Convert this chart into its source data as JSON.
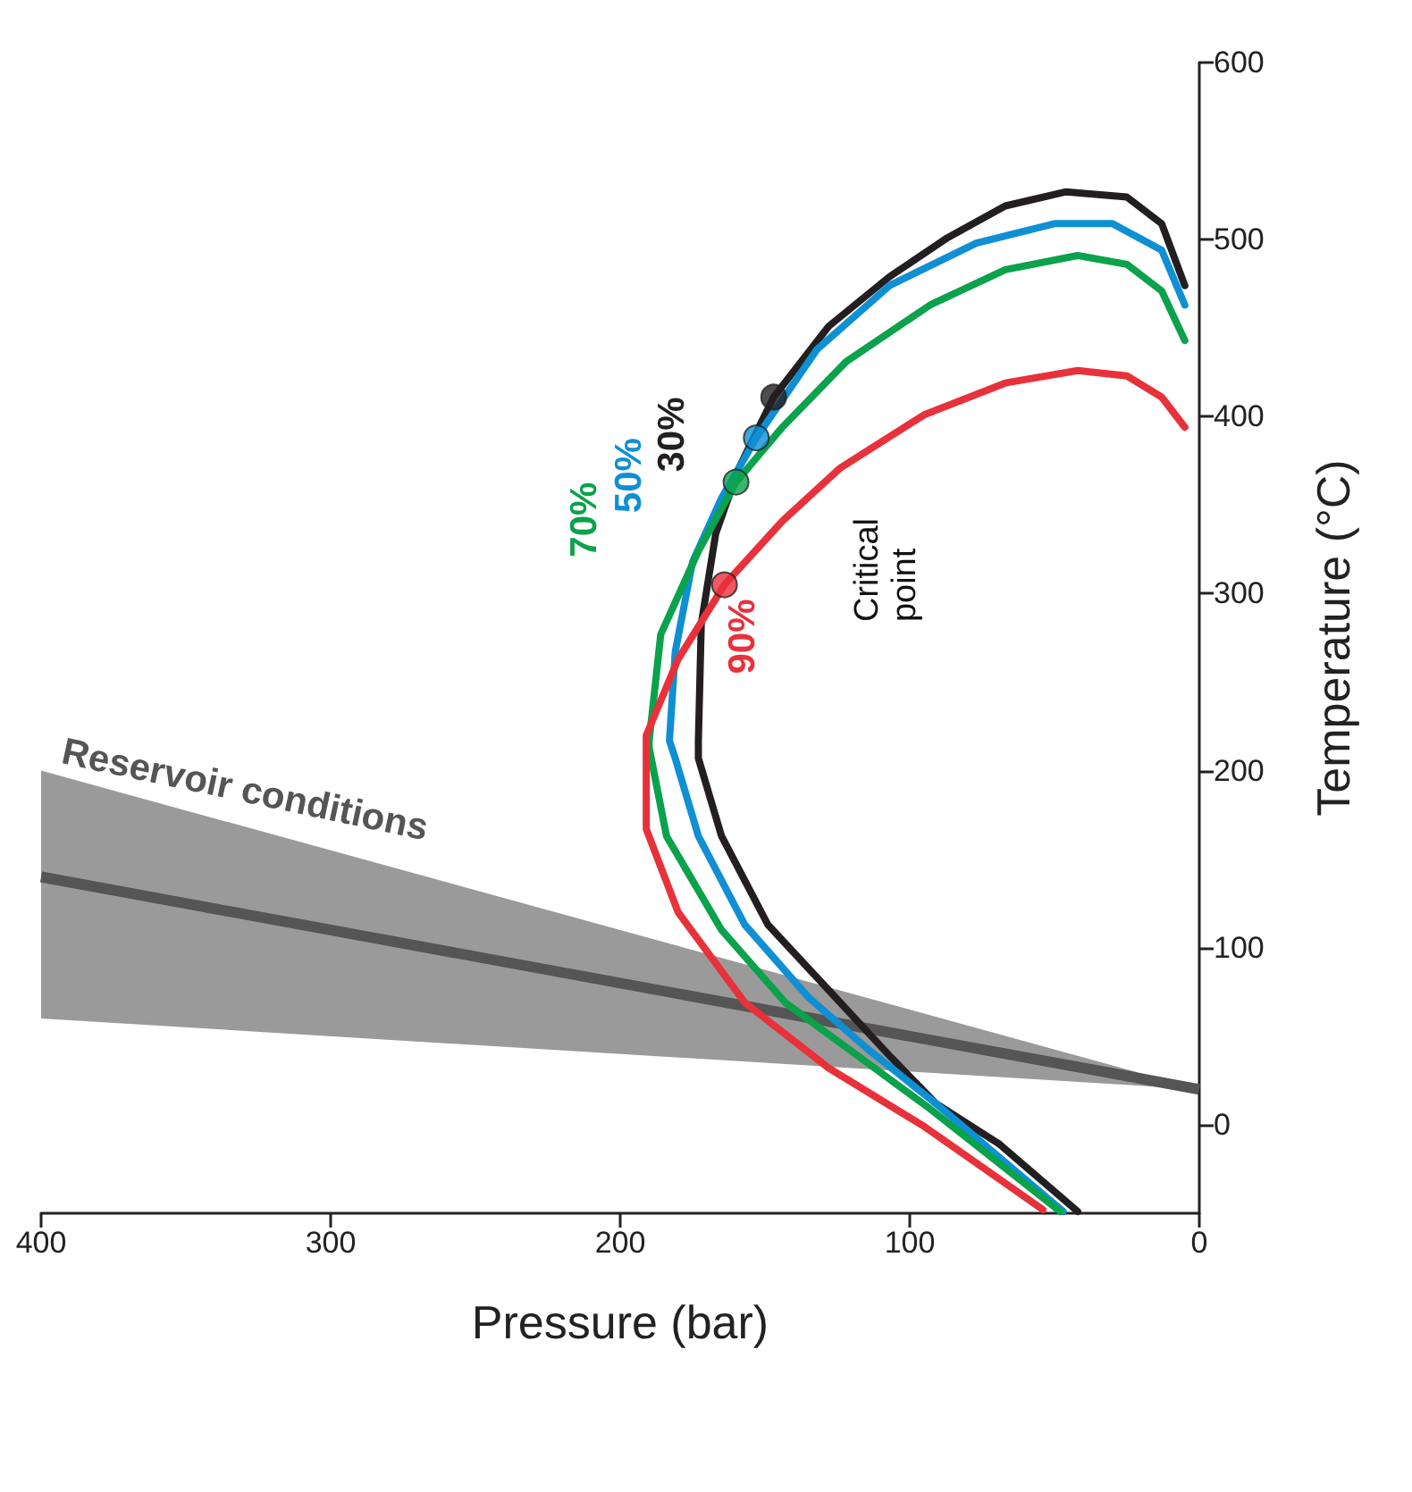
{
  "chart_data": {
    "type": "line",
    "xlabel": "Pressure (bar)",
    "ylabel": "Temperature (°C)",
    "xlim": [
      400,
      0
    ],
    "xticks": [
      400,
      300,
      200,
      100,
      0
    ],
    "ylim": [
      -50,
      600
    ],
    "yticks": [
      0,
      100,
      200,
      300,
      400,
      500,
      600
    ],
    "marker": "none",
    "line_style": "solid",
    "annotations": [
      "Critical point"
    ],
    "series": [
      {
        "name": "Reservoir conditions",
        "color": "#555555",
        "x": [
          400,
          0
        ],
        "values": [
          140,
          20
        ],
        "lower": [
          60,
          20
        ],
        "upper": [
          200,
          20
        ]
      },
      {
        "name": "30%",
        "color": "#231f20",
        "x": [
          5,
          13,
          25,
          46,
          67,
          87,
          107,
          128,
          147,
          159,
          167,
          172,
          173,
          173,
          165,
          149,
          128,
          107,
          91,
          69,
          42
        ],
        "values": [
          474,
          509,
          524,
          527,
          519,
          501,
          479,
          451,
          411,
          371,
          334,
          283,
          217,
          207,
          163,
          113,
          76,
          39,
          12,
          -11,
          -49
        ]
      },
      {
        "name": "50%",
        "color": "#0f8fd4",
        "x": [
          5,
          13,
          30,
          50,
          77,
          107,
          132,
          153,
          165,
          175,
          181,
          183,
          181,
          173,
          157,
          135,
          114,
          91,
          47
        ],
        "values": [
          463,
          494,
          509,
          509,
          498,
          474,
          438,
          388,
          354,
          318,
          267,
          217,
          207,
          163,
          113,
          72,
          42,
          12,
          -49
        ]
      },
      {
        "name": "70%",
        "color": "#0aa24b",
        "x": [
          5,
          13,
          25,
          42,
          67,
          93,
          122,
          144,
          160,
          173,
          186,
          190,
          190,
          184,
          165,
          143,
          118,
          93,
          48
        ],
        "values": [
          443,
          471,
          486,
          491,
          483,
          463,
          431,
          394,
          363,
          324,
          277,
          217,
          213,
          163,
          110,
          69,
          39,
          9,
          -49
        ]
      },
      {
        "name": "90%",
        "color": "#e8313a",
        "x": [
          5,
          13,
          25,
          42,
          67,
          95,
          124,
          144,
          164,
          180,
          191,
          191,
          180,
          157,
          128,
          95,
          54
        ],
        "values": [
          394,
          411,
          423,
          426,
          419,
          401,
          371,
          341,
          305,
          263,
          220,
          167,
          120,
          69,
          32,
          -1,
          -48
        ]
      },
      {
        "type": "scatter",
        "marker": "circle",
        "x": [
          147,
          153,
          160,
          164
        ],
        "values": [
          411,
          388,
          363,
          305
        ],
        "colors": [
          "#231f20",
          "#0f8fd4",
          "#0aa24b",
          "#e8313a"
        ]
      }
    ]
  }
}
